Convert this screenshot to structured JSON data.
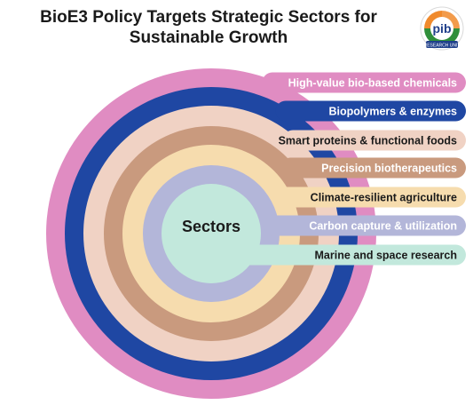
{
  "header": {
    "title_line1": "BioE3 Policy Targets Strategic Sectors for",
    "title_line2": "Sustainable Growth"
  },
  "logo": {
    "icon": "pib-research-unit-logo",
    "text": "pib",
    "subtext": "RESEARCH UNIT"
  },
  "diagram": {
    "center_label": "Sectors",
    "sectors": [
      {
        "label": "High-value bio-based chemicals",
        "color": "#e08cc2",
        "text_color": "#ffffff"
      },
      {
        "label": "Biopolymers & enzymes",
        "color": "#1f47a3",
        "text_color": "#ffffff"
      },
      {
        "label": "Smart proteins & functional foods",
        "color": "#f0d2c4",
        "text_color": "#1a1a1a"
      },
      {
        "label": "Precision biotherapeutics",
        "color": "#c99a7e",
        "text_color": "#ffffff"
      },
      {
        "label": "Climate-resilient agriculture",
        "color": "#f6dcae",
        "text_color": "#1a1a1a"
      },
      {
        "label": "Carbon capture & utilization",
        "color": "#b3b6d9",
        "text_color": "#ffffff"
      },
      {
        "label": "Marine and space research",
        "color": "#c2e8dc",
        "text_color": "#1a1a1a"
      }
    ]
  }
}
